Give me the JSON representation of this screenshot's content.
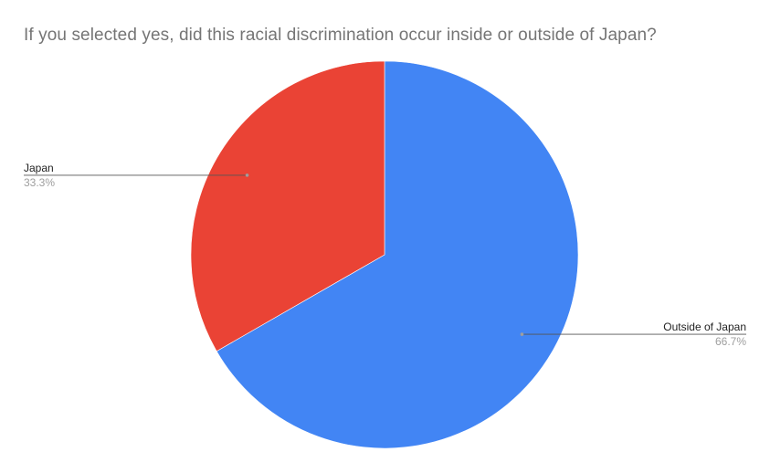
{
  "chart_data": {
    "type": "pie",
    "title": "If you selected yes, did this racial discrimination occur inside or outside of Japan?",
    "slices": [
      {
        "label": "Outside of Japan",
        "value": 66.7,
        "percent_label": "66.7%",
        "color": "#4285f4"
      },
      {
        "label": "Japan",
        "value": 33.3,
        "percent_label": "33.3%",
        "color": "#ea4335"
      }
    ],
    "start_angle_deg": 0,
    "direction": "clockwise",
    "legend": "none",
    "labels": "outside-with-leader-lines"
  }
}
